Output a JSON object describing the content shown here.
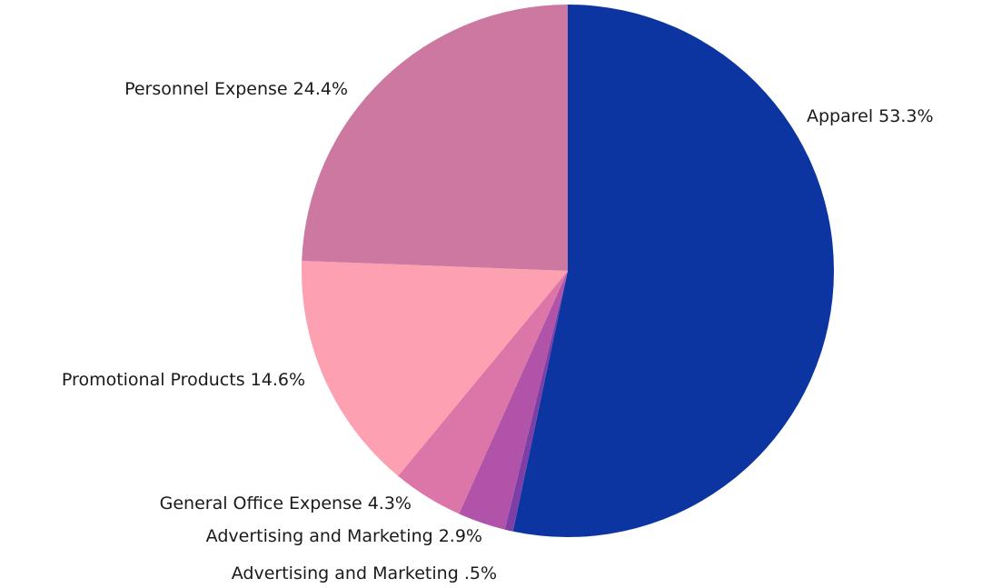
{
  "chart_data": {
    "type": "pie",
    "categories": [
      "Apparel",
      "Advertising and Marketing",
      "Advertising and Marketing",
      "General Office Expense",
      "Promotional Products",
      "Personnel Expense"
    ],
    "values": [
      53.3,
      0.5,
      2.9,
      4.3,
      14.6,
      24.4
    ],
    "value_labels": [
      "53.3%",
      ".5%",
      "2.9%",
      "4.3%",
      "14.6%",
      "24.4%"
    ],
    "colors": [
      "#0d35a1",
      "#7d3fa6",
      "#b153a8",
      "#dc76a8",
      "#fda0b1",
      "#cc78a1"
    ]
  }
}
